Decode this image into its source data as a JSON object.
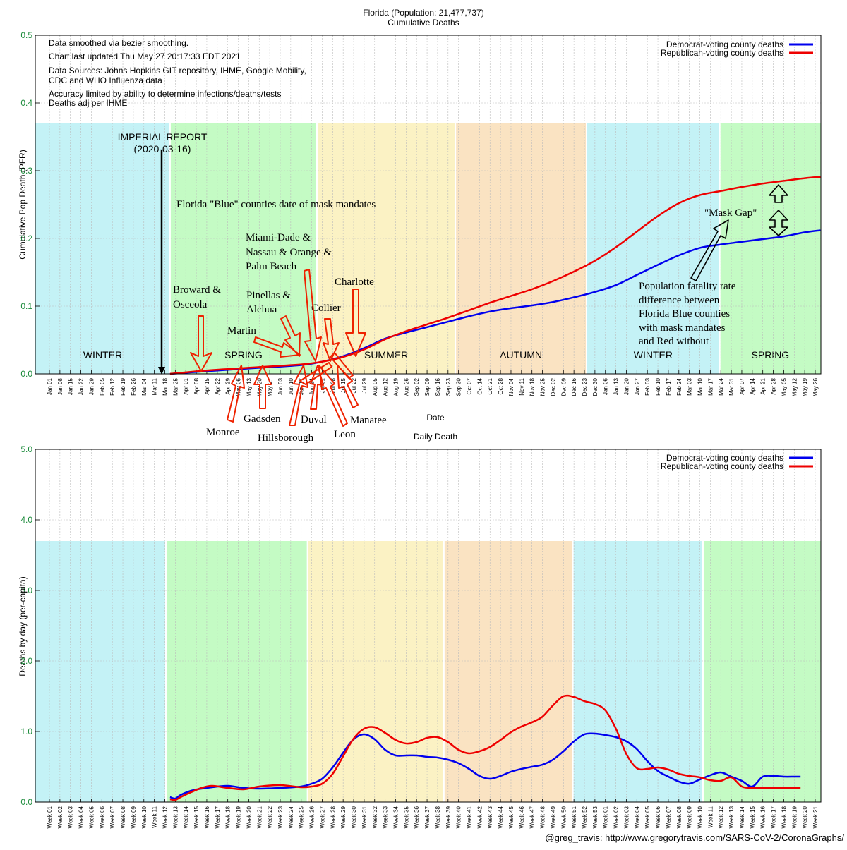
{
  "chart_data": [
    {
      "type": "line",
      "title": "Florida (Population: 21,477,737)",
      "subtitle": "Cumulative Deaths",
      "xlabel": "Date",
      "ylabel": "Cumulative Pop Death (PFR)",
      "ylim": [
        0,
        0.5
      ],
      "yticks": [
        "0.0",
        "0.1",
        "0.2",
        "0.3",
        "0.4",
        "0.5"
      ],
      "grid": true,
      "legend_position": "top-right",
      "x_tick_labels": [
        "Jan 01",
        "Jan 08",
        "Jan 15",
        "Jan 22",
        "Jan 29",
        "Feb 05",
        "Feb 12",
        "Feb 19",
        "Feb 26",
        "Mar 04",
        "Mar 11",
        "Mar 18",
        "Mar 25",
        "Apr 01",
        "Apr 08",
        "Apr 15",
        "Apr 22",
        "Apr 29",
        "May 06",
        "May 13",
        "May 20",
        "May 27",
        "Jun 03",
        "Jun 10",
        "Jun 17",
        "Jun 24",
        "Jul 01",
        "Jul 08",
        "Jul 15",
        "Jul 22",
        "Jul 29",
        "Aug 05",
        "Aug 12",
        "Aug 19",
        "Aug 26",
        "Sep 02",
        "Sep 09",
        "Sep 16",
        "Sep 23",
        "Sep 30",
        "Oct 07",
        "Oct 14",
        "Oct 21",
        "Oct 28",
        "Nov 04",
        "Nov 11",
        "Nov 18",
        "Nov 25",
        "Dec 02",
        "Dec 09",
        "Dec 16",
        "Dec 23",
        "Dec 30",
        "Jan 06",
        "Jan 13",
        "Jan 20",
        "Jan 27",
        "Feb 03",
        "Feb 10",
        "Feb 17",
        "Feb 24",
        "Mar 03",
        "Mar 10",
        "Mar 17",
        "Mar 24",
        "Mar 31",
        "Apr 07",
        "Apr 14",
        "Apr 21",
        "Apr 28",
        "May 05",
        "May 12",
        "May 19",
        "May 26"
      ],
      "seasons": [
        {
          "label": "WINTER",
          "start": 0,
          "end": 11.5,
          "color": "#c4f2f6"
        },
        {
          "label": "SPRING",
          "start": 11.5,
          "end": 25.5,
          "color": "#c4fbc4"
        },
        {
          "label": "SUMMER",
          "start": 25.5,
          "end": 38.7,
          "color": "#fbf2c4"
        },
        {
          "label": "AUTUMN",
          "start": 38.7,
          "end": 51.2,
          "color": "#fae3c2"
        },
        {
          "label": "WINTER",
          "start": 51.2,
          "end": 63.9,
          "color": "#c4f2f6"
        },
        {
          "label": "SPRING",
          "start": 63.9,
          "end": 73.5,
          "color": "#c4fbc4"
        }
      ],
      "season_band_top": 0.37,
      "series": [
        {
          "name": "Democrat-voting county deaths",
          "color": "#0000ee",
          "x": [
            11.5,
            15,
            20,
            24,
            26,
            28,
            30,
            32,
            34,
            36,
            38,
            40,
            42,
            44,
            46,
            48,
            50,
            52,
            54,
            56,
            58,
            60,
            62,
            64,
            66,
            68,
            70,
            72,
            73.5
          ],
          "y": [
            0,
            0.004,
            0.009,
            0.013,
            0.018,
            0.026,
            0.038,
            0.052,
            0.061,
            0.069,
            0.077,
            0.085,
            0.092,
            0.097,
            0.101,
            0.106,
            0.113,
            0.121,
            0.131,
            0.146,
            0.161,
            0.175,
            0.186,
            0.191,
            0.195,
            0.199,
            0.203,
            0.209,
            0.212
          ]
        },
        {
          "name": "Republican-voting county deaths",
          "color": "#ee0000",
          "x": [
            11.5,
            15,
            20,
            24,
            26,
            28,
            30,
            32,
            34,
            36,
            38,
            40,
            42,
            44,
            46,
            48,
            50,
            52,
            54,
            56,
            58,
            60,
            62,
            64,
            66,
            68,
            70,
            72,
            73.5
          ],
          "y": [
            0,
            0.005,
            0.01,
            0.014,
            0.018,
            0.025,
            0.036,
            0.051,
            0.063,
            0.073,
            0.083,
            0.094,
            0.105,
            0.115,
            0.125,
            0.137,
            0.151,
            0.167,
            0.187,
            0.21,
            0.233,
            0.252,
            0.264,
            0.27,
            0.276,
            0.281,
            0.285,
            0.289,
            0.291
          ]
        }
      ],
      "info_text": [
        "Data smoothed via bezier smoothing.",
        "Chart last updated Thu May 27 20:17:33 EDT 2021",
        "Data Sources: Johns Hopkins GIT repository, IHME, Google Mobility,",
        "CDC and WHO Influenza data",
        "Accuracy limited by ability to determine infections/deaths/tests",
        "Deaths adj per IHME"
      ],
      "imperial_report": {
        "line1": "IMPERIAL REPORT",
        "line2": "(2020-03-16)",
        "x": 11.1
      },
      "annotations": {
        "mask_title": "Florida \"Blue\" counties date of mask mandates",
        "broward": [
          "Broward &",
          "Osceola"
        ],
        "martin": "Martin",
        "pinellas": [
          "Pinellas &",
          "Alchua"
        ],
        "miami": [
          "Miami-Dade &",
          "Nassau & Orange &",
          "Palm Beach"
        ],
        "collier": "Collier",
        "charlotte": "Charlotte",
        "monroe": "Monroe",
        "gadsden": "Gadsden",
        "hillsborough": "Hillsborough",
        "duval": "Duval",
        "leon": "Leon",
        "manatee": "Manatee",
        "mask_gap": "\"Mask Gap\"",
        "pfr_note": [
          "Population fatality rate",
          "difference between",
          "Florida Blue counties",
          "with mask mandates",
          "and Red without"
        ]
      }
    },
    {
      "type": "line",
      "title": "Daily Death",
      "xlabel": "",
      "ylabel": "Deaths by day (per-capita)",
      "ylim": [
        0,
        5.0
      ],
      "yticks": [
        "0.0",
        "1.0",
        "2.0",
        "3.0",
        "4.0",
        "5.0"
      ],
      "grid": true,
      "legend_position": "top-right",
      "x_tick_labels": [
        "Week 01",
        "Week 02",
        "Week 03",
        "Week 04",
        "Week 05",
        "Week 06",
        "Week 07",
        "Week 08",
        "Week 09",
        "Week 10",
        "Week 11",
        "Week 12",
        "Week 13",
        "Week 14",
        "Week 15",
        "Week 16",
        "Week 17",
        "Week 18",
        "Week 19",
        "Week 20",
        "Week 21",
        "Week 22",
        "Week 23",
        "Week 24",
        "Week 25",
        "Week 26",
        "Week 27",
        "Week 28",
        "Week 29",
        "Week 30",
        "Week 31",
        "Week 32",
        "Week 33",
        "Week 34",
        "Week 35",
        "Week 36",
        "Week 37",
        "Week 38",
        "Week 39",
        "Week 40",
        "Week 41",
        "Week 42",
        "Week 43",
        "Week 44",
        "Week 45",
        "Week 46",
        "Week 47",
        "Week 48",
        "Week 49",
        "Week 50",
        "Week 51",
        "Week 52",
        "Week 53",
        "Week 01",
        "Week 02",
        "Week 03",
        "Week 04",
        "Week 05",
        "Week 06",
        "Week 07",
        "Week 08",
        "Week 09",
        "Week 10",
        "Week 11",
        "Week 12",
        "Week 13",
        "Week 14",
        "Week 15",
        "Week 16",
        "Week 17",
        "Week 18",
        "Week 19",
        "Week 20",
        "Week 21"
      ],
      "seasons": [
        {
          "label": "",
          "start": 0,
          "end": 11.1,
          "color": "#c4f2f6"
        },
        {
          "label": "",
          "start": 11.1,
          "end": 24.6,
          "color": "#c4fbc4"
        },
        {
          "label": "",
          "start": 24.6,
          "end": 37.6,
          "color": "#fbf2c4"
        },
        {
          "label": "",
          "start": 37.6,
          "end": 49.9,
          "color": "#fae3c2"
        },
        {
          "label": "",
          "start": 49.9,
          "end": 62.3,
          "color": "#c4f2f6"
        },
        {
          "label": "",
          "start": 62.3,
          "end": 71.6,
          "color": "#c4fbc4"
        }
      ],
      "season_band_top": 3.7,
      "series": [
        {
          "name": "Democrat-voting county deaths",
          "color": "#0000ee",
          "x": [
            11.5,
            12,
            12.5,
            13.5,
            14.5,
            15.5,
            17,
            18.5,
            20,
            22,
            24,
            25,
            26,
            27,
            28,
            29,
            30,
            31,
            32,
            33,
            34,
            35,
            36,
            37,
            38,
            39,
            40,
            41,
            42,
            43,
            44,
            45,
            46,
            47,
            48,
            49,
            50,
            51,
            52,
            53,
            54,
            55,
            56,
            57,
            58,
            59,
            60,
            61,
            62,
            63,
            64,
            65,
            66,
            67,
            68,
            69,
            70,
            71,
            71.6
          ],
          "y": [
            0.07,
            0.05,
            0.1,
            0.16,
            0.19,
            0.21,
            0.23,
            0.2,
            0.19,
            0.2,
            0.22,
            0.26,
            0.33,
            0.49,
            0.7,
            0.89,
            0.96,
            0.89,
            0.74,
            0.66,
            0.66,
            0.66,
            0.64,
            0.63,
            0.6,
            0.55,
            0.47,
            0.37,
            0.33,
            0.37,
            0.43,
            0.47,
            0.5,
            0.53,
            0.6,
            0.72,
            0.86,
            0.96,
            0.97,
            0.95,
            0.92,
            0.86,
            0.75,
            0.58,
            0.44,
            0.36,
            0.29,
            0.26,
            0.32,
            0.38,
            0.42,
            0.36,
            0.3,
            0.22,
            0.36,
            0.37,
            0.36,
            0.36,
            0.36
          ]
        },
        {
          "name": "Republican-voting county deaths",
          "color": "#ee0000",
          "x": [
            11.5,
            12,
            12.5,
            13.5,
            14.5,
            15.5,
            17,
            18.5,
            20,
            22,
            24,
            25,
            26,
            27,
            28,
            29,
            30,
            31,
            32,
            33,
            34,
            35,
            36,
            37,
            38,
            39,
            40,
            41,
            42,
            43,
            44,
            45,
            46,
            47,
            48,
            49,
            50,
            51,
            52,
            53,
            54,
            55,
            56,
            57,
            58,
            59,
            60,
            61,
            62,
            63,
            64,
            65,
            66,
            67,
            68,
            69,
            70,
            71,
            71.6
          ],
          "y": [
            0.04,
            0.03,
            0.07,
            0.14,
            0.2,
            0.23,
            0.2,
            0.18,
            0.22,
            0.24,
            0.21,
            0.22,
            0.26,
            0.4,
            0.65,
            0.9,
            1.04,
            1.06,
            0.98,
            0.88,
            0.83,
            0.85,
            0.91,
            0.92,
            0.85,
            0.74,
            0.69,
            0.72,
            0.78,
            0.88,
            0.99,
            1.07,
            1.13,
            1.21,
            1.37,
            1.5,
            1.49,
            1.43,
            1.39,
            1.3,
            1.04,
            0.68,
            0.48,
            0.47,
            0.49,
            0.46,
            0.4,
            0.37,
            0.35,
            0.31,
            0.3,
            0.35,
            0.22,
            0.2,
            0.2,
            0.2,
            0.2,
            0.2,
            0.2
          ]
        }
      ],
      "credit": "@greg_travis: http://www.gregorytravis.com/SARS-CoV-2/CoronaGraphs/"
    }
  ]
}
